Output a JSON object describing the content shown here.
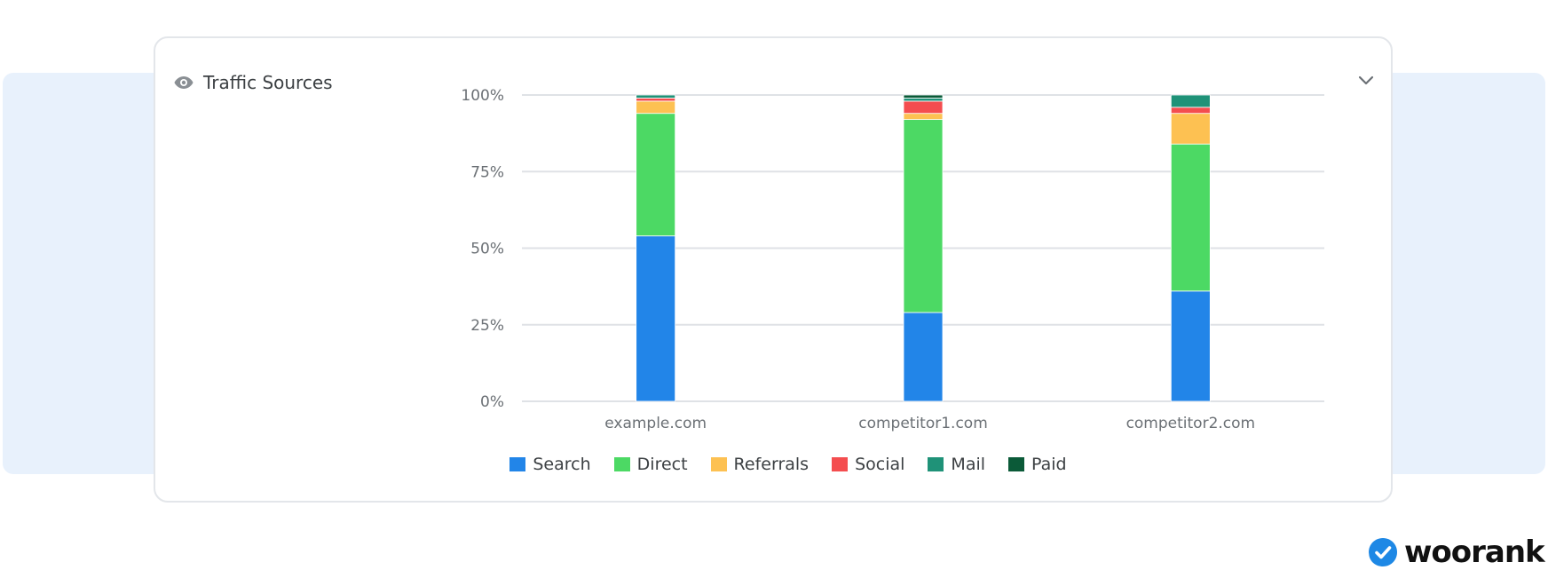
{
  "card": {
    "title": "Traffic Sources",
    "title_icon": "eye-icon",
    "toggle_icon": "chevron-down-icon"
  },
  "logo": {
    "text": "woorank",
    "icon": "checkmark-badge-icon"
  },
  "colors": {
    "Search": "#2285e8",
    "Direct": "#4cd964",
    "Referrals": "#fdc152",
    "Social": "#f44d4f",
    "Mail": "#1f9278",
    "Paid": "#0b5a38",
    "logo_blue": "#1e88e5"
  },
  "chart_data": {
    "type": "bar",
    "stacked": true,
    "categories": [
      "example.com",
      "competitor1.com",
      "competitor2.com"
    ],
    "ylim": [
      0,
      100
    ],
    "yticks": [
      "0%",
      "25%",
      "50%",
      "75%",
      "100%"
    ],
    "grid": true,
    "legend_position": "bottom",
    "series": [
      {
        "name": "Search",
        "values": [
          54,
          29,
          36
        ]
      },
      {
        "name": "Direct",
        "values": [
          40,
          63,
          48
        ]
      },
      {
        "name": "Referrals",
        "values": [
          4,
          2,
          10
        ]
      },
      {
        "name": "Social",
        "values": [
          1,
          4,
          2
        ]
      },
      {
        "name": "Mail",
        "values": [
          1,
          1,
          4
        ]
      },
      {
        "name": "Paid",
        "values": [
          0,
          1,
          0
        ]
      }
    ]
  }
}
